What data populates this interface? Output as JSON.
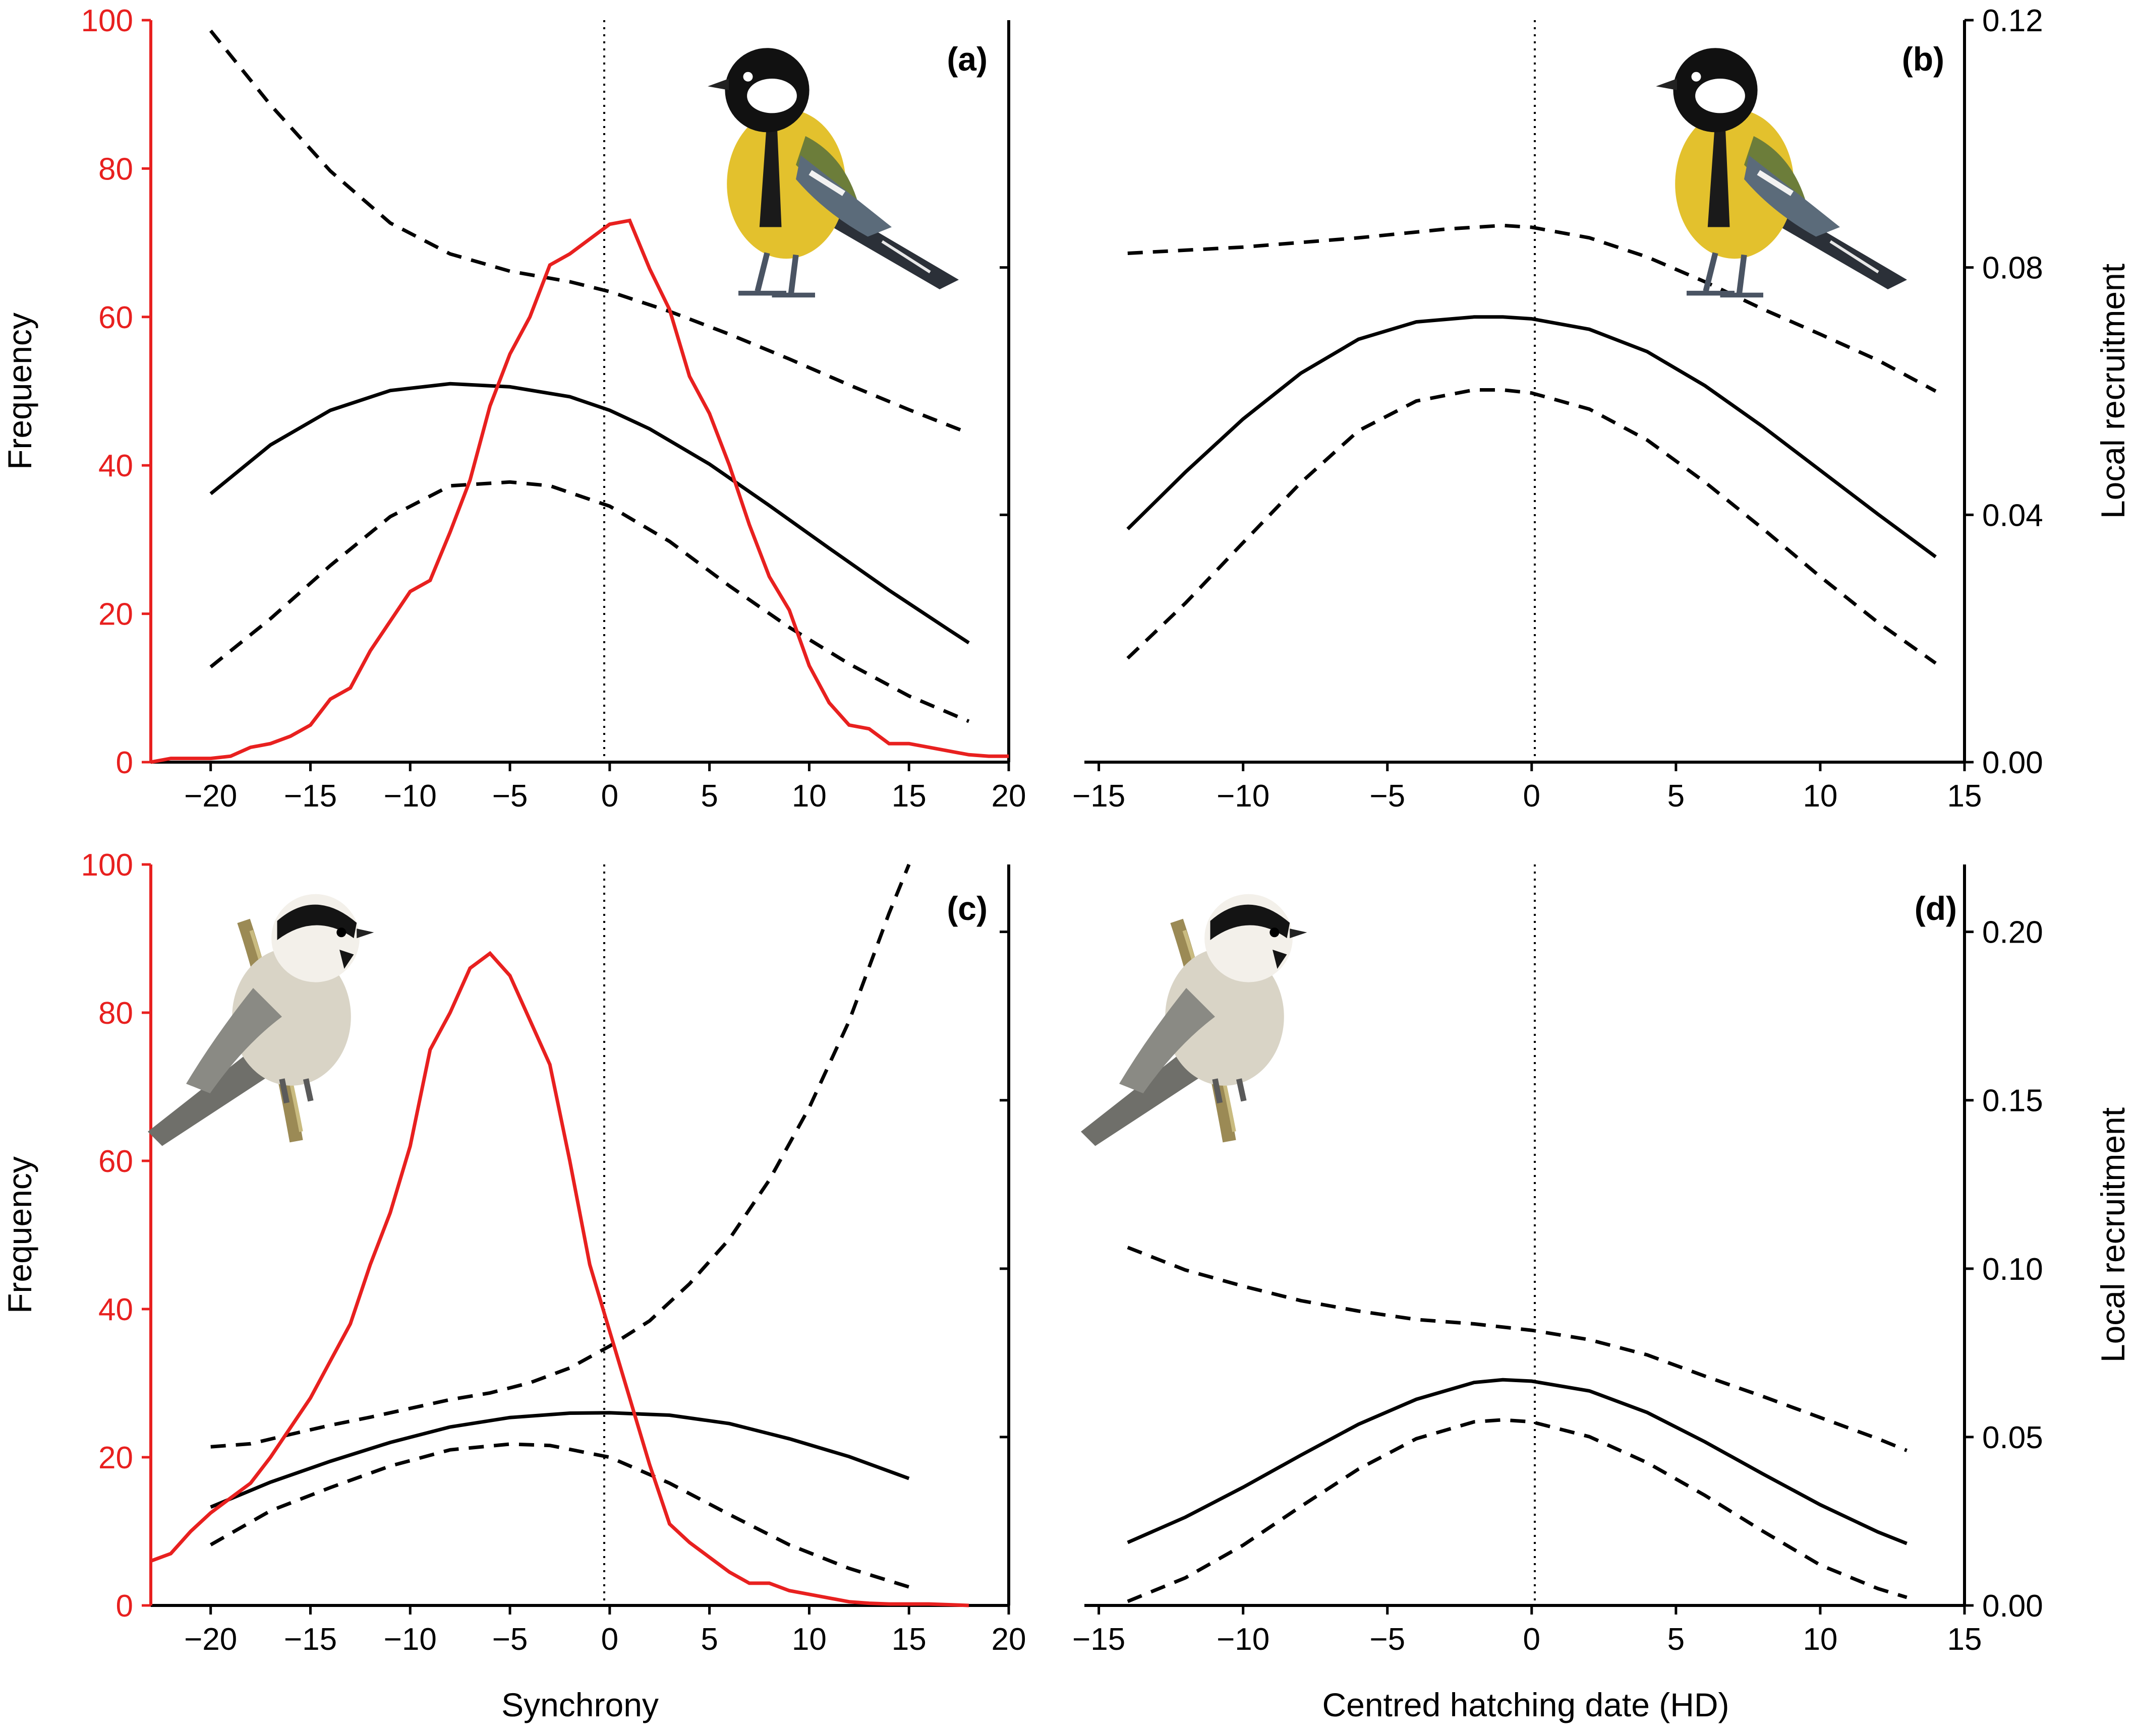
{
  "colors": {
    "frequency": "#e8201f",
    "recruitment": "#000000"
  },
  "icons": {
    "great_tit": "great-tit-illustration",
    "marsh_tit": "marsh-tit-illustration"
  },
  "chart_data": [
    {
      "type": "line",
      "panel": "(a)",
      "xlabel": "",
      "ylabel_left": "Frequency",
      "ylabel_right": "",
      "xlim": [
        -23,
        20
      ],
      "xticks": [
        -20,
        -15,
        -10,
        -5,
        0,
        5,
        10,
        15,
        20
      ],
      "ylim_left": [
        0,
        100
      ],
      "yticks_left": [
        0,
        20,
        40,
        60,
        80,
        100
      ],
      "ylim_right": [
        0,
        0.12
      ],
      "yticks_right": [],
      "vline_x": 0,
      "frequency": {
        "x": [
          -23,
          -22,
          -21,
          -20,
          -19,
          -18,
          -17,
          -16,
          -15,
          -14,
          -13,
          -12,
          -11,
          -10,
          -9,
          -8,
          -7,
          -6,
          -5,
          -4,
          -3,
          -2,
          -1,
          0,
          1,
          2,
          3,
          4,
          5,
          6,
          7,
          8,
          9,
          10,
          11,
          12,
          13,
          14,
          15,
          16,
          17,
          18,
          19,
          20
        ],
        "y": [
          0,
          0.5,
          0.5,
          0.5,
          0.8,
          2,
          2.5,
          3.5,
          5,
          8.5,
          10,
          15,
          19,
          23,
          24.5,
          31,
          38,
          48,
          55,
          60,
          67,
          68.5,
          70.5,
          72.5,
          73,
          66.5,
          61,
          52,
          47,
          40,
          32,
          25,
          20.5,
          13,
          8,
          5,
          4.5,
          2.5,
          2.5,
          2,
          1.5,
          1,
          0.8,
          0.8
        ]
      },
      "recruitment_mean": {
        "x": [
          -20,
          -17,
          -14,
          -11,
          -8,
          -5,
          -2,
          0,
          2,
          5,
          8,
          11,
          14,
          17,
          18
        ],
        "y": [
          0.0434,
          0.0513,
          0.0569,
          0.0601,
          0.0612,
          0.0607,
          0.0591,
          0.0569,
          0.0539,
          0.0482,
          0.0415,
          0.0346,
          0.0278,
          0.0214,
          0.0193
        ]
      },
      "recruitment_upper": {
        "x": [
          -20,
          -17,
          -14,
          -11,
          -8,
          -5,
          -2,
          0,
          3,
          6,
          9,
          12,
          15,
          18
        ],
        "y": [
          0.1183,
          0.1063,
          0.0956,
          0.0872,
          0.0822,
          0.0794,
          0.0777,
          0.0761,
          0.0729,
          0.0692,
          0.0652,
          0.061,
          0.057,
          0.0532
        ]
      },
      "recruitment_lower": {
        "x": [
          -20,
          -17,
          -14,
          -11,
          -8,
          -5,
          -3,
          0,
          3,
          6,
          9,
          12,
          15,
          18
        ],
        "y": [
          0.0154,
          0.0232,
          0.0318,
          0.0397,
          0.0447,
          0.0453,
          0.0447,
          0.0414,
          0.0357,
          0.0285,
          0.0218,
          0.0159,
          0.0107,
          0.0066
        ]
      }
    },
    {
      "type": "line",
      "panel": "(b)",
      "xlabel": "",
      "ylabel_left": "",
      "ylabel_right": "Local recruitment",
      "xlim": [
        -15.5,
        15
      ],
      "xticks": [
        -15,
        -10,
        -5,
        0,
        5,
        10,
        15
      ],
      "ylim_right": [
        0,
        0.12
      ],
      "yticks_right": [
        0.0,
        0.04,
        0.08,
        0.12
      ],
      "ytick_labels_right": [
        "0.00",
        "0.04",
        "0.08",
        "0.12"
      ],
      "vline_x": 0,
      "recruitment_mean": {
        "x": [
          -14,
          -12,
          -10,
          -8,
          -6,
          -4,
          -2,
          -1,
          0,
          2,
          4,
          6,
          8,
          10,
          12,
          14
        ],
        "y": [
          0.0377,
          0.0469,
          0.0555,
          0.0629,
          0.0684,
          0.0712,
          0.072,
          0.072,
          0.0717,
          0.07,
          0.0664,
          0.0609,
          0.0543,
          0.0472,
          0.0401,
          0.0332
        ]
      },
      "recruitment_upper": {
        "x": [
          -14,
          -10,
          -6,
          -3,
          -1,
          0,
          2,
          4,
          6,
          8,
          10,
          12,
          14
        ],
        "y": [
          0.0823,
          0.0833,
          0.0848,
          0.0862,
          0.0868,
          0.0865,
          0.0848,
          0.0817,
          0.0777,
          0.0733,
          0.0692,
          0.065,
          0.06
        ]
      },
      "recruitment_lower": {
        "x": [
          -14,
          -12,
          -10,
          -8,
          -6,
          -4,
          -2,
          -1,
          0,
          2,
          4,
          6,
          8,
          10,
          12,
          14
        ],
        "y": [
          0.0168,
          0.0257,
          0.0355,
          0.0452,
          0.0536,
          0.0584,
          0.0602,
          0.0602,
          0.0597,
          0.0571,
          0.0521,
          0.0453,
          0.0378,
          0.03,
          0.0226,
          0.016
        ]
      }
    },
    {
      "type": "line",
      "panel": "(c)",
      "xlabel": "Synchrony",
      "ylabel_left": "Frequency",
      "ylabel_right": "",
      "xlim": [
        -23,
        20
      ],
      "xticks": [
        -20,
        -15,
        -10,
        -5,
        0,
        5,
        10,
        15,
        20
      ],
      "ylim_left": [
        0,
        100
      ],
      "yticks_left": [
        0,
        20,
        40,
        60,
        80,
        100
      ],
      "ylim_right": [
        0,
        0.22
      ],
      "yticks_right": [],
      "vline_x": 0,
      "frequency": {
        "x": [
          -23,
          -22,
          -21,
          -20,
          -19,
          -18,
          -17,
          -16,
          -15,
          -14,
          -13,
          -12,
          -11,
          -10,
          -9,
          -8,
          -7,
          -6,
          -5,
          -4,
          -3,
          -2,
          -1,
          0,
          1,
          2,
          3,
          4,
          5,
          6,
          7,
          8,
          9,
          10,
          11,
          12,
          13,
          14,
          15,
          16,
          17,
          18
        ],
        "y": [
          6,
          7,
          10,
          12.5,
          14.5,
          16.5,
          20,
          24,
          28,
          33,
          38,
          46,
          53,
          62,
          75,
          80,
          86,
          88,
          85,
          79,
          73,
          60,
          46,
          37,
          28,
          19,
          11,
          8.5,
          6.5,
          4.5,
          3,
          3,
          2,
          1.5,
          1,
          0.5,
          0.3,
          0.2,
          0.2,
          0.2,
          0.1,
          0
        ]
      },
      "recruitment_mean": {
        "x": [
          -20,
          -17,
          -14,
          -11,
          -8,
          -5,
          -2,
          0,
          3,
          6,
          9,
          12,
          15
        ],
        "y": [
          0.0292,
          0.0366,
          0.0428,
          0.0484,
          0.053,
          0.0558,
          0.0571,
          0.0572,
          0.0565,
          0.054,
          0.0495,
          0.0442,
          0.0377
        ]
      },
      "recruitment_lower": {
        "x": [
          -20,
          -17,
          -14,
          -11,
          -8,
          -5,
          -3,
          0,
          3,
          6,
          9,
          12,
          15
        ],
        "y": [
          0.018,
          0.0281,
          0.035,
          0.0414,
          0.0462,
          0.0479,
          0.0475,
          0.044,
          0.0363,
          0.027,
          0.018,
          0.011,
          0.0055
        ]
      },
      "recruitment_upper": {
        "x": [
          -20,
          -18,
          -16,
          -14,
          -12,
          -10,
          -8,
          -6,
          -4,
          -2,
          0,
          2,
          4,
          6,
          8,
          10,
          12,
          14,
          15
        ],
        "y": [
          0.0471,
          0.048,
          0.0508,
          0.0535,
          0.0559,
          0.0585,
          0.0611,
          0.0631,
          0.0661,
          0.0705,
          0.077,
          0.0845,
          0.0955,
          0.1088,
          0.1263,
          0.1478,
          0.1735,
          0.2055,
          0.22
        ]
      }
    },
    {
      "type": "line",
      "panel": "(d)",
      "xlabel": "Centred hatching date (HD)",
      "ylabel_left": "",
      "ylabel_right": "Local recruitment",
      "xlim": [
        -15.5,
        15
      ],
      "xticks": [
        -15,
        -10,
        -5,
        0,
        5,
        10,
        15
      ],
      "ylim_right": [
        0,
        0.22
      ],
      "yticks_right": [
        0.0,
        0.05,
        0.1,
        0.15,
        0.2
      ],
      "ytick_labels_right": [
        "0.00",
        "0.05",
        "0.10",
        "0.15",
        "0.20"
      ],
      "vline_x": 0,
      "recruitment_mean": {
        "x": [
          -14,
          -12,
          -10,
          -8,
          -6,
          -4,
          -2,
          -1,
          0,
          2,
          4,
          6,
          8,
          10,
          12,
          13
        ],
        "y": [
          0.0187,
          0.0262,
          0.0351,
          0.0446,
          0.0538,
          0.0612,
          0.0662,
          0.067,
          0.0666,
          0.0637,
          0.0573,
          0.0486,
          0.0391,
          0.0299,
          0.0218,
          0.0184
        ]
      },
      "recruitment_upper": {
        "x": [
          -14,
          -12,
          -10,
          -8,
          -6,
          -4,
          -2,
          0,
          2,
          4,
          6,
          8,
          10,
          12,
          13
        ],
        "y": [
          0.1063,
          0.0996,
          0.0948,
          0.0905,
          0.0874,
          0.0849,
          0.0836,
          0.0817,
          0.0789,
          0.0744,
          0.0681,
          0.0621,
          0.0558,
          0.0495,
          0.046
        ]
      },
      "recruitment_lower": {
        "x": [
          -14,
          -12,
          -10,
          -8,
          -6,
          -4,
          -2,
          -1,
          0,
          2,
          4,
          6,
          8,
          10,
          12,
          13
        ],
        "y": [
          0.0012,
          0.0082,
          0.0179,
          0.0294,
          0.0405,
          0.0495,
          0.0545,
          0.0551,
          0.0545,
          0.0501,
          0.0424,
          0.0327,
          0.0221,
          0.012,
          0.005,
          0.0024
        ]
      }
    }
  ]
}
